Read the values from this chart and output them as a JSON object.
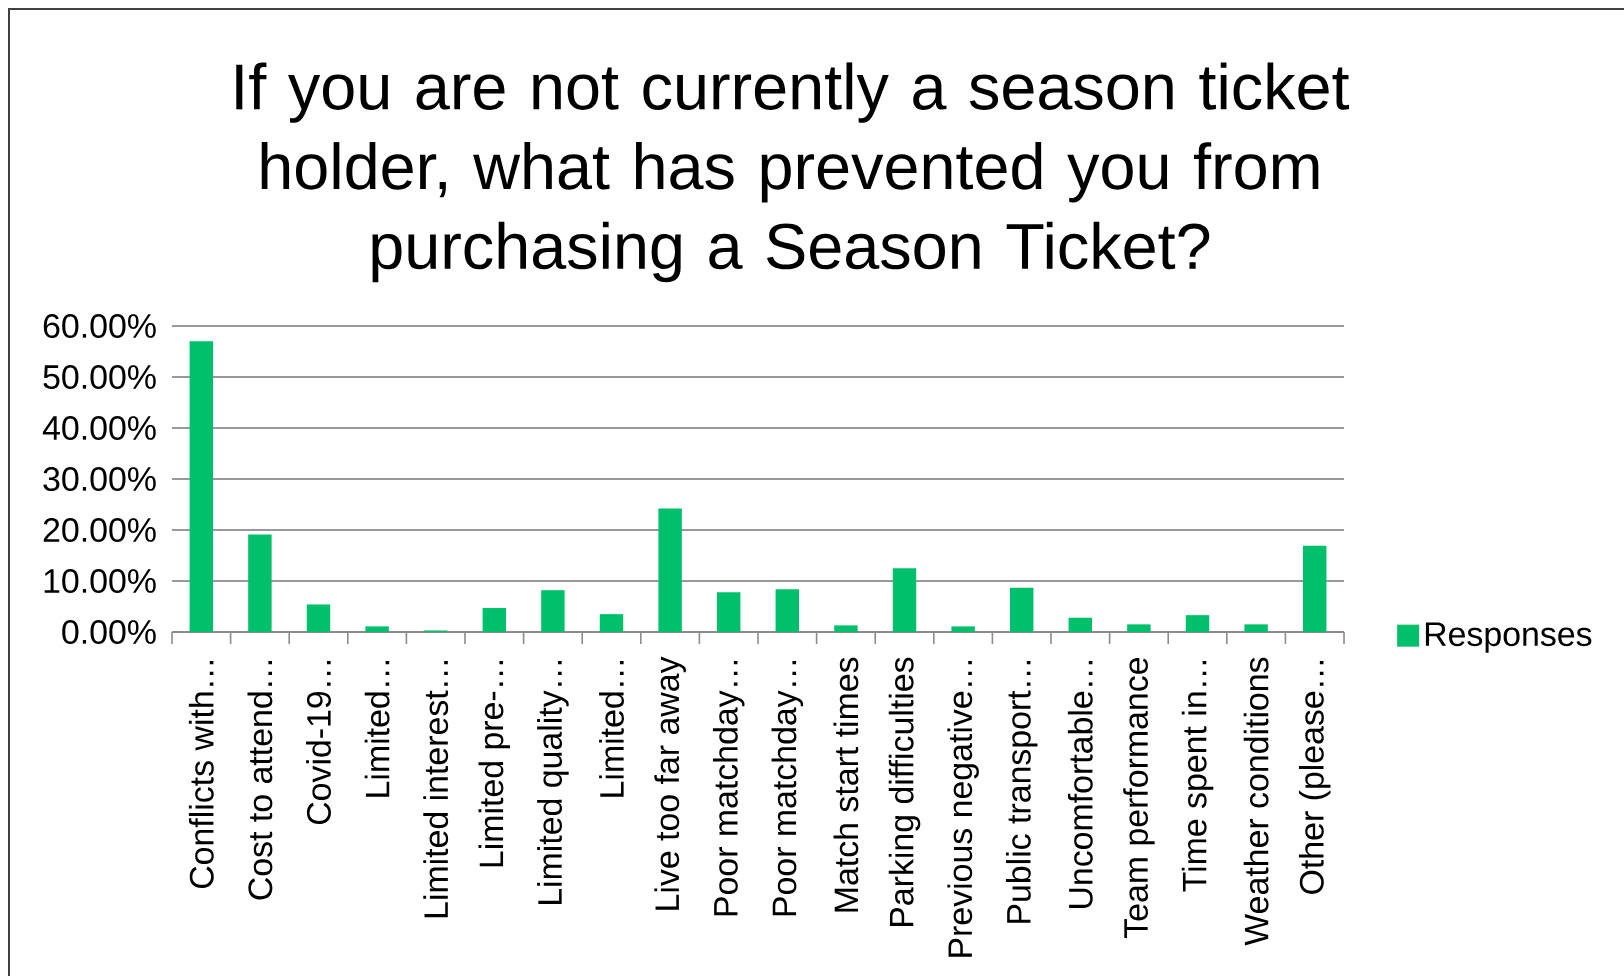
{
  "chart_data": {
    "type": "bar",
    "title": "If you are not currently a season ticket holder, what has prevented you from purchasing a Season Ticket?",
    "categories": [
      "Conflicts with…",
      "Cost to attend…",
      "Covid-19…",
      "Limited…",
      "Limited interest…",
      "Limited pre-…",
      "Limited quality…",
      "Limited…",
      "Live too far away",
      "Poor matchday…",
      "Poor matchday…",
      "Match start times",
      "Parking difficulties",
      "Previous negative…",
      "Public transport…",
      "Uncomfortable…",
      "Team performance",
      "Time spent in…",
      "Weather conditions",
      "Other (please…"
    ],
    "series": [
      {
        "name": "Responses",
        "color": "#00c06b",
        "values": [
          57.0,
          19.1,
          5.4,
          1.1,
          0.3,
          4.7,
          8.2,
          3.5,
          24.2,
          7.8,
          8.4,
          1.3,
          12.5,
          1.1,
          8.7,
          2.8,
          1.5,
          3.3,
          1.5,
          16.9
        ]
      }
    ],
    "ylim": [
      0,
      60
    ],
    "yticks": [
      {
        "value": 0,
        "label": "0.00%"
      },
      {
        "value": 10,
        "label": "10.00%"
      },
      {
        "value": 20,
        "label": "20.00%"
      },
      {
        "value": 30,
        "label": "30.00%"
      },
      {
        "value": 40,
        "label": "40.00%"
      },
      {
        "value": 50,
        "label": "50.00%"
      },
      {
        "value": 60,
        "label": "60.00%"
      }
    ],
    "grid": "y",
    "legend": "right"
  }
}
